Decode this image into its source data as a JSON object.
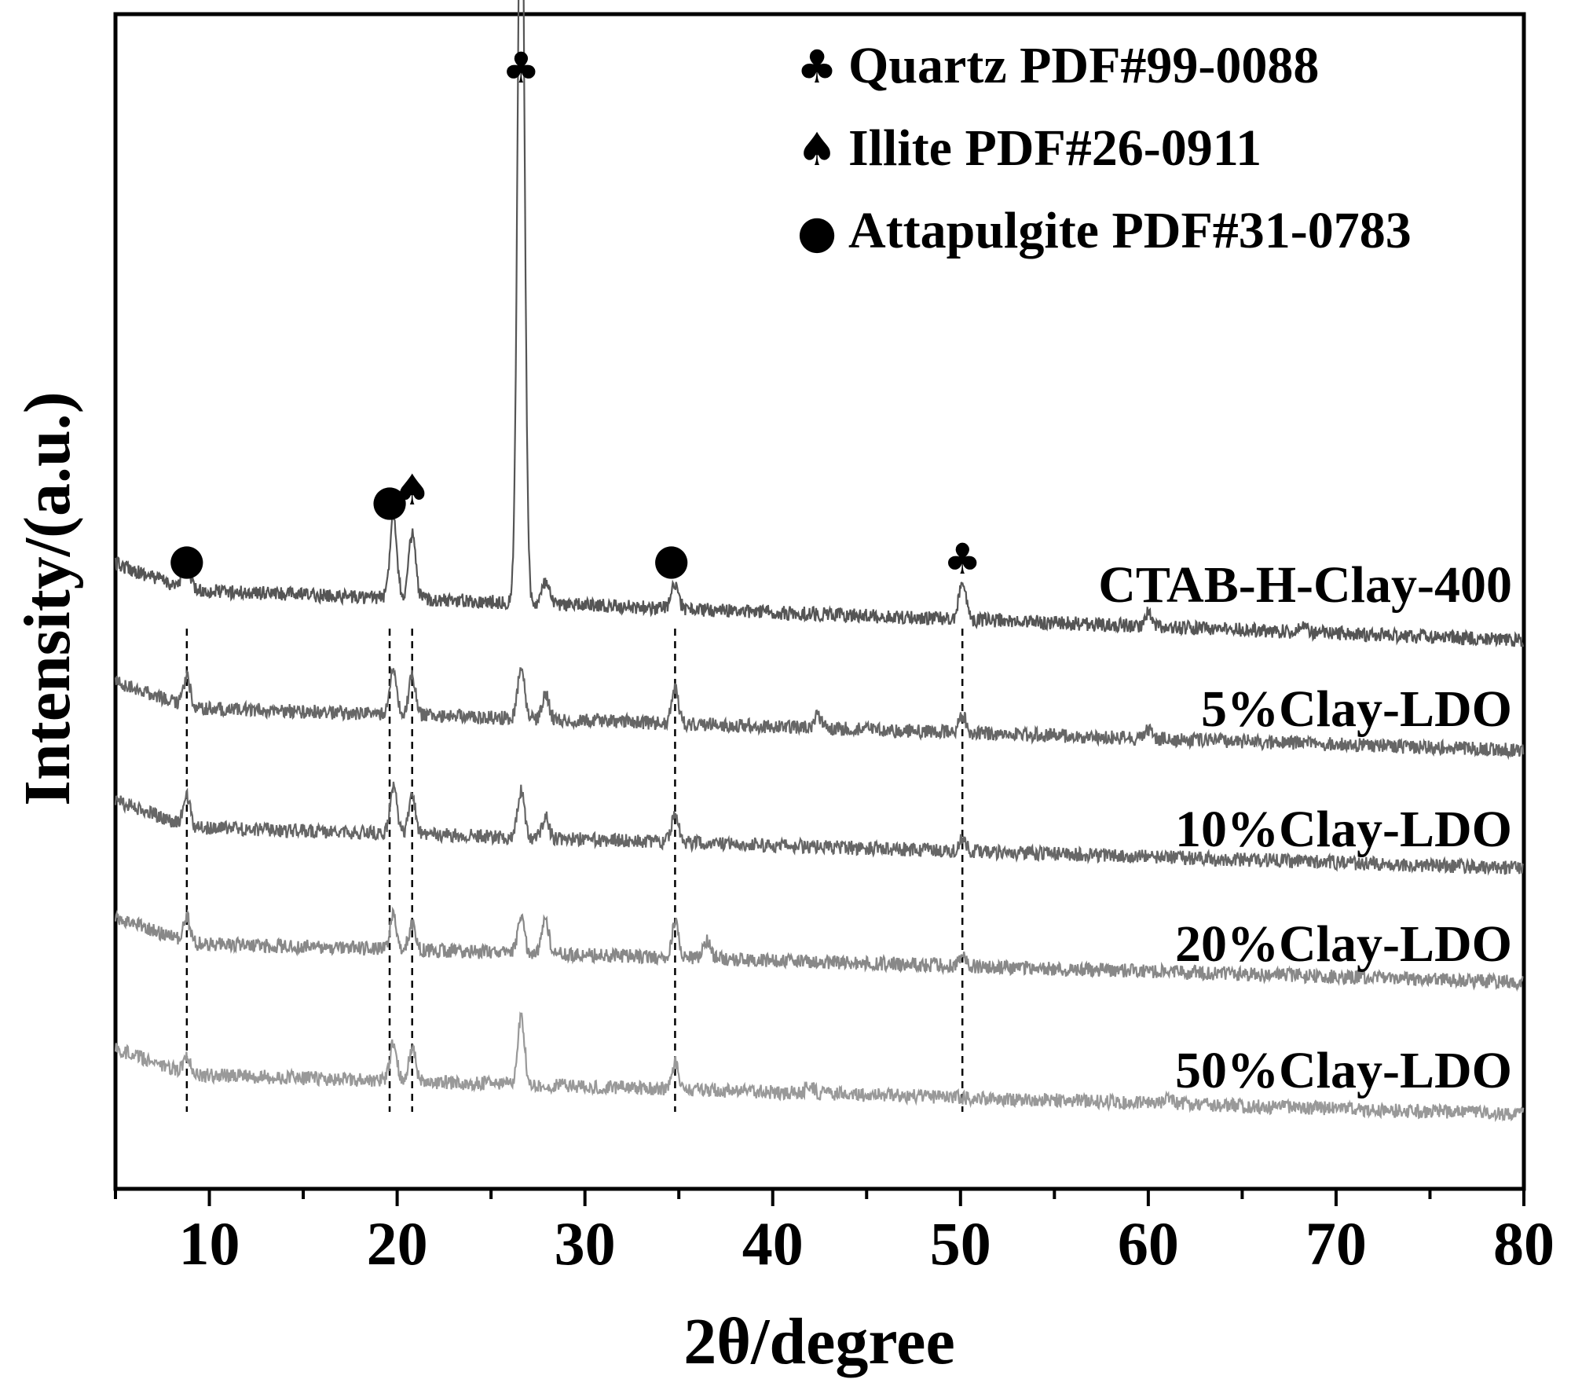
{
  "chart_data": {
    "type": "line",
    "xlabel": "2θ/degree",
    "ylabel": "Intensity/(a.u.)",
    "xlim": [
      5,
      80
    ],
    "xticks": [
      10,
      20,
      30,
      40,
      50,
      60,
      70,
      80
    ],
    "grid": false,
    "legend_position": "top-right",
    "legend": [
      {
        "symbol": "♣",
        "label": "Quartz PDF#99-0088"
      },
      {
        "symbol": "♠",
        "label": "Illite PDF#26-0911"
      },
      {
        "symbol": "●",
        "label": "Attapulgite PDF#31-0783"
      }
    ],
    "series": [
      {
        "name": "CTAB-H-Clay-400",
        "color": "#555555",
        "peaks": [
          [
            8.8,
            0.35
          ],
          [
            19.8,
            1.0
          ],
          [
            20.8,
            0.75
          ],
          [
            26.6,
            9.3
          ],
          [
            27.9,
            0.25
          ],
          [
            34.8,
            0.3
          ],
          [
            50.1,
            0.45
          ],
          [
            60.0,
            0.15
          ],
          [
            68.2,
            0.12
          ]
        ]
      },
      {
        "name": "5%Clay-LDO",
        "color": "#666666",
        "peaks": [
          [
            8.8,
            0.35
          ],
          [
            19.8,
            0.55
          ],
          [
            20.8,
            0.45
          ],
          [
            26.6,
            0.6
          ],
          [
            27.9,
            0.3
          ],
          [
            34.8,
            0.4
          ],
          [
            42.4,
            0.15
          ],
          [
            50.1,
            0.2
          ],
          [
            60.0,
            0.1
          ]
        ]
      },
      {
        "name": "10%Clay-LDO",
        "color": "#666666",
        "peaks": [
          [
            8.8,
            0.35
          ],
          [
            19.8,
            0.55
          ],
          [
            20.8,
            0.45
          ],
          [
            26.6,
            0.55
          ],
          [
            27.9,
            0.25
          ],
          [
            34.8,
            0.35
          ],
          [
            50.1,
            0.15
          ]
        ]
      },
      {
        "name": "20%Clay-LDO",
        "color": "#888888",
        "peaks": [
          [
            8.8,
            0.3
          ],
          [
            19.8,
            0.4
          ],
          [
            20.8,
            0.3
          ],
          [
            26.6,
            0.4
          ],
          [
            27.9,
            0.4
          ],
          [
            34.8,
            0.4
          ],
          [
            36.5,
            0.2
          ],
          [
            50.1,
            0.1
          ]
        ]
      },
      {
        "name": "50%Clay-LDO",
        "color": "#999999",
        "peaks": [
          [
            8.8,
            0.2
          ],
          [
            19.8,
            0.45
          ],
          [
            20.8,
            0.4
          ],
          [
            26.6,
            0.8
          ],
          [
            34.8,
            0.3
          ],
          [
            42.0,
            0.1
          ],
          [
            61.0,
            0.1
          ]
        ]
      }
    ],
    "peak_markers": [
      {
        "x": 8.8,
        "symbol": "●"
      },
      {
        "x": 19.6,
        "symbol": "●"
      },
      {
        "x": 20.8,
        "symbol": "♠"
      },
      {
        "x": 26.6,
        "symbol": "♣"
      },
      {
        "x": 34.6,
        "symbol": "●"
      },
      {
        "x": 50.1,
        "symbol": "♣"
      }
    ]
  }
}
